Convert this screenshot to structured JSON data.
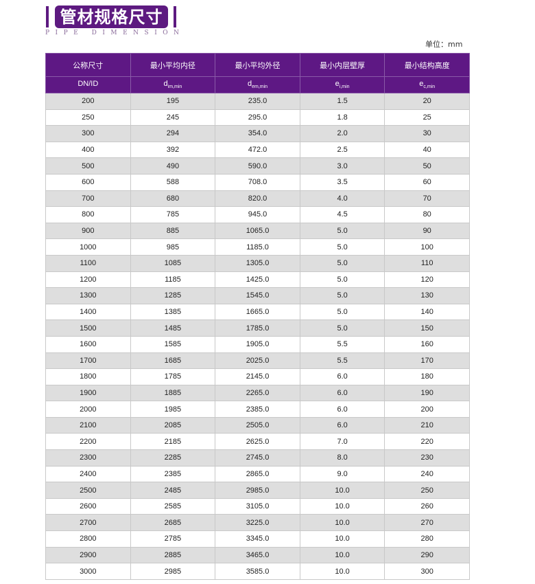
{
  "title": "管材规格尺寸",
  "subtitle": "PIPE DIMENSION",
  "unit": "单位：mm",
  "colors": {
    "accent": "#5e1884",
    "row_alt": "#dedede"
  },
  "headers": [
    "公称尺寸",
    "最小平均内径",
    "最小平均外径",
    "最小内层壁厚",
    "最小结构高度"
  ],
  "symbols": [
    {
      "base": "DN/ID",
      "sub": ""
    },
    {
      "base": "d",
      "sub": "im,min"
    },
    {
      "base": "d",
      "sub": "em,min"
    },
    {
      "base": "e",
      "sub": "i,min"
    },
    {
      "base": "e",
      "sub": "c,min"
    }
  ],
  "rows": [
    [
      "200",
      "195",
      "235.0",
      "1.5",
      "20"
    ],
    [
      "250",
      "245",
      "295.0",
      "1.8",
      "25"
    ],
    [
      "300",
      "294",
      "354.0",
      "2.0",
      "30"
    ],
    [
      "400",
      "392",
      "472.0",
      "2.5",
      "40"
    ],
    [
      "500",
      "490",
      "590.0",
      "3.0",
      "50"
    ],
    [
      "600",
      "588",
      "708.0",
      "3.5",
      "60"
    ],
    [
      "700",
      "680",
      "820.0",
      "4.0",
      "70"
    ],
    [
      "800",
      "785",
      "945.0",
      "4.5",
      "80"
    ],
    [
      "900",
      "885",
      "1065.0",
      "5.0",
      "90"
    ],
    [
      "1000",
      "985",
      "1185.0",
      "5.0",
      "100"
    ],
    [
      "1100",
      "1085",
      "1305.0",
      "5.0",
      "110"
    ],
    [
      "1200",
      "1185",
      "1425.0",
      "5.0",
      "120"
    ],
    [
      "1300",
      "1285",
      "1545.0",
      "5.0",
      "130"
    ],
    [
      "1400",
      "1385",
      "1665.0",
      "5.0",
      "140"
    ],
    [
      "1500",
      "1485",
      "1785.0",
      "5.0",
      "150"
    ],
    [
      "1600",
      "1585",
      "1905.0",
      "5.5",
      "160"
    ],
    [
      "1700",
      "1685",
      "2025.0",
      "5.5",
      "170"
    ],
    [
      "1800",
      "1785",
      "2145.0",
      "6.0",
      "180"
    ],
    [
      "1900",
      "1885",
      "2265.0",
      "6.0",
      "190"
    ],
    [
      "2000",
      "1985",
      "2385.0",
      "6.0",
      "200"
    ],
    [
      "2100",
      "2085",
      "2505.0",
      "6.0",
      "210"
    ],
    [
      "2200",
      "2185",
      "2625.0",
      "7.0",
      "220"
    ],
    [
      "2300",
      "2285",
      "2745.0",
      "8.0",
      "230"
    ],
    [
      "2400",
      "2385",
      "2865.0",
      "9.0",
      "240"
    ],
    [
      "2500",
      "2485",
      "2985.0",
      "10.0",
      "250"
    ],
    [
      "2600",
      "2585",
      "3105.0",
      "10.0",
      "260"
    ],
    [
      "2700",
      "2685",
      "3225.0",
      "10.0",
      "270"
    ],
    [
      "2800",
      "2785",
      "3345.0",
      "10.0",
      "280"
    ],
    [
      "2900",
      "2885",
      "3465.0",
      "10.0",
      "290"
    ],
    [
      "3000",
      "2985",
      "3585.0",
      "10.0",
      "300"
    ]
  ]
}
